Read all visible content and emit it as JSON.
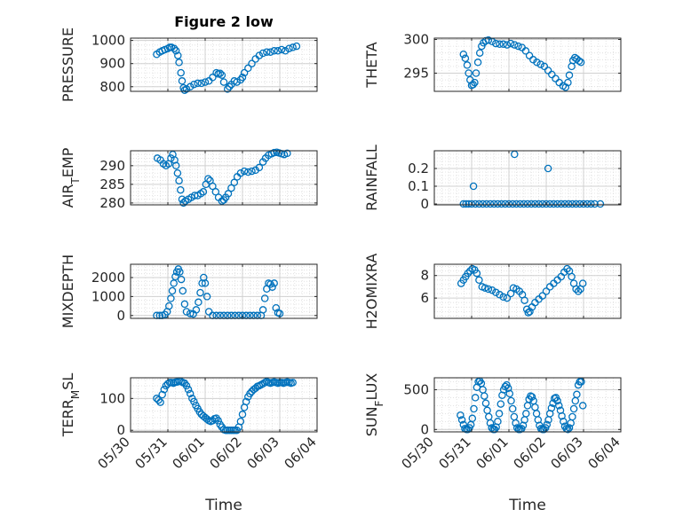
{
  "figure": {
    "title": "Figure 2 low",
    "xlabel": "Time",
    "marker_color": "#0072bd",
    "grid": true,
    "minor_grid": true,
    "x_tick_labels": [
      "05/30",
      "05/31",
      "06/01",
      "06/02",
      "06/03",
      "06/04"
    ]
  },
  "chart_data": [
    {
      "type": "scatter",
      "ylabel": "PRESSURE",
      "xlim": [
        0,
        5
      ],
      "ylim": [
        780,
        1010
      ],
      "yticks": [
        800,
        900,
        1000
      ],
      "xticks": [
        0,
        1,
        2,
        3,
        4,
        5
      ],
      "series": [
        {
          "x": [
            0.7,
            0.78,
            0.85,
            0.92,
            1.0,
            1.05,
            1.1,
            1.17,
            1.22,
            1.27,
            1.3,
            1.35,
            1.38,
            1.42,
            1.45,
            1.5,
            1.6,
            1.7,
            1.8,
            1.9,
            2.0,
            2.1,
            2.2,
            2.3,
            2.35,
            2.4,
            2.45,
            2.5,
            2.6,
            2.65,
            2.7,
            2.78,
            2.85,
            2.95,
            3.0,
            3.05,
            3.15,
            3.25,
            3.35,
            3.45,
            3.55,
            3.65,
            3.75,
            3.85,
            3.95,
            4.05,
            4.15,
            4.25,
            4.35,
            4.45
          ],
          "y": [
            940,
            950,
            955,
            960,
            965,
            970,
            970,
            965,
            955,
            935,
            905,
            860,
            825,
            795,
            785,
            790,
            800,
            810,
            815,
            815,
            820,
            825,
            840,
            860,
            855,
            858,
            850,
            820,
            790,
            800,
            810,
            825,
            820,
            830,
            840,
            860,
            880,
            900,
            920,
            935,
            945,
            950,
            950,
            955,
            955,
            960,
            955,
            965,
            970,
            975
          ]
        }
      ]
    },
    {
      "type": "scatter",
      "ylabel": "THETA",
      "xlim": [
        0,
        5
      ],
      "ylim": [
        292.3,
        300.2
      ],
      "yticks": [
        295,
        300
      ],
      "xticks": [
        0,
        1,
        2,
        3,
        4,
        5
      ],
      "series": [
        {
          "x": [
            0.78,
            0.83,
            0.88,
            0.92,
            0.96,
            1.0,
            1.04,
            1.08,
            1.12,
            1.17,
            1.22,
            1.27,
            1.32,
            1.38,
            1.45,
            1.55,
            1.65,
            1.75,
            1.85,
            1.95,
            2.05,
            2.15,
            2.25,
            2.35,
            2.45,
            2.55,
            2.65,
            2.75,
            2.85,
            2.95,
            3.05,
            3.15,
            3.25,
            3.35,
            3.45,
            3.52,
            3.58,
            3.62,
            3.68,
            3.72,
            3.77,
            3.82,
            3.88,
            3.93
          ],
          "y": [
            297.8,
            297.2,
            296.2,
            295.0,
            294.0,
            293.2,
            293.3,
            293.6,
            295.0,
            296.6,
            298.0,
            299.0,
            299.5,
            299.8,
            299.9,
            299.7,
            299.4,
            299.3,
            299.3,
            299.2,
            299.4,
            299.2,
            299.0,
            298.8,
            298.3,
            297.6,
            297.0,
            296.6,
            296.3,
            296.0,
            295.4,
            294.8,
            294.2,
            293.6,
            293.1,
            292.9,
            293.6,
            294.7,
            296.0,
            296.9,
            297.3,
            297.1,
            296.8,
            296.6
          ]
        }
      ]
    },
    {
      "type": "scatter",
      "ylabel": "AIR_TEMP",
      "xlim": [
        0,
        5
      ],
      "ylim": [
        279.5,
        294
      ],
      "yticks": [
        280,
        285,
        290
      ],
      "xticks": [
        0,
        1,
        2,
        3,
        4,
        5
      ],
      "series": [
        {
          "x": [
            0.72,
            0.8,
            0.88,
            0.95,
            1.02,
            1.08,
            1.13,
            1.18,
            1.22,
            1.26,
            1.3,
            1.34,
            1.38,
            1.42,
            1.47,
            1.55,
            1.63,
            1.72,
            1.8,
            1.88,
            1.95,
            2.02,
            2.08,
            2.13,
            2.2,
            2.28,
            2.36,
            2.45,
            2.5,
            2.55,
            2.62,
            2.7,
            2.78,
            2.86,
            2.95,
            3.05,
            3.15,
            3.25,
            3.35,
            3.45,
            3.55,
            3.62,
            3.7,
            3.78,
            3.85,
            3.92,
            3.98,
            4.05,
            4.12,
            4.2
          ],
          "y": [
            292.0,
            291.5,
            290.5,
            290.0,
            290.5,
            292.0,
            293.0,
            291.5,
            290.0,
            288.0,
            286.0,
            283.5,
            281.0,
            280.0,
            280.5,
            281.0,
            281.5,
            282.0,
            282.0,
            282.5,
            283.0,
            285.0,
            286.5,
            286.0,
            284.5,
            283.0,
            281.5,
            280.5,
            280.8,
            281.5,
            282.5,
            284.0,
            285.5,
            287.0,
            288.0,
            288.5,
            288.3,
            288.5,
            288.8,
            289.5,
            291.0,
            292.0,
            292.8,
            293.2,
            293.5,
            293.6,
            293.4,
            293.2,
            293.0,
            293.3
          ]
        }
      ]
    },
    {
      "type": "scatter",
      "ylabel": "RAINFALL",
      "xlim": [
        0,
        5
      ],
      "ylim": [
        -0.005,
        0.3
      ],
      "yticks": [
        0,
        0.1,
        0.2
      ],
      "xticks": [
        0,
        1,
        2,
        3,
        4,
        5
      ],
      "series": [
        {
          "x": [
            0.78,
            0.85,
            0.92,
            1.0,
            1.1,
            1.2,
            1.3,
            1.4,
            1.5,
            1.6,
            1.7,
            1.8,
            1.9,
            2.0,
            2.1,
            2.2,
            2.3,
            2.4,
            2.5,
            2.6,
            2.7,
            2.8,
            2.9,
            3.0,
            3.1,
            3.2,
            3.3,
            3.4,
            3.5,
            3.6,
            3.7,
            3.8,
            3.9,
            4.0,
            4.1,
            4.2,
            4.3,
            4.45,
            1.05,
            2.15,
            3.05
          ],
          "y": [
            0,
            0,
            0,
            0,
            0,
            0,
            0,
            0,
            0,
            0,
            0,
            0,
            0,
            0,
            0,
            0,
            0,
            0,
            0,
            0,
            0,
            0,
            0,
            0,
            0,
            0,
            0,
            0,
            0,
            0,
            0,
            0,
            0,
            0,
            0,
            0,
            0,
            0,
            0.1,
            0.28,
            0.2
          ]
        }
      ]
    },
    {
      "type": "scatter",
      "ylabel": "MIXDEPTH",
      "xlim": [
        0,
        5
      ],
      "ylim": [
        -150,
        2700
      ],
      "yticks": [
        0,
        1000,
        2000
      ],
      "xticks": [
        0,
        1,
        2,
        3,
        4,
        5
      ],
      "series": [
        {
          "x": [
            0.7,
            0.78,
            0.85,
            0.92,
            0.98,
            1.03,
            1.08,
            1.12,
            1.16,
            1.2,
            1.24,
            1.28,
            1.32,
            1.36,
            1.4,
            1.45,
            1.5,
            1.6,
            1.68,
            1.76,
            1.82,
            1.87,
            1.92,
            1.96,
            2.0,
            2.05,
            2.1,
            2.2,
            2.3,
            2.4,
            2.5,
            2.6,
            2.7,
            2.8,
            2.9,
            3.0,
            3.1,
            3.2,
            3.3,
            3.4,
            3.5,
            3.55,
            3.6,
            3.65,
            3.7,
            3.75,
            3.8,
            3.85,
            3.9,
            3.95,
            4.0
          ],
          "y": [
            0,
            0,
            0,
            50,
            200,
            500,
            900,
            1300,
            1700,
            2050,
            2300,
            2450,
            2300,
            1900,
            1300,
            600,
            200,
            100,
            80,
            300,
            700,
            1200,
            1700,
            2000,
            1700,
            1000,
            200,
            0,
            0,
            0,
            0,
            0,
            0,
            0,
            0,
            0,
            0,
            0,
            0,
            0,
            0,
            300,
            900,
            1400,
            1700,
            1650,
            1500,
            1700,
            400,
            150,
            100
          ]
        }
      ]
    },
    {
      "type": "scatter",
      "ylabel": "H2OMIXRA",
      "xlim": [
        0,
        5
      ],
      "ylim": [
        4.2,
        9.0
      ],
      "yticks": [
        6,
        8
      ],
      "xticks": [
        0,
        1,
        2,
        3,
        4,
        5
      ],
      "series": [
        {
          "x": [
            0.72,
            0.78,
            0.84,
            0.9,
            0.96,
            1.02,
            1.08,
            1.14,
            1.2,
            1.28,
            1.36,
            1.45,
            1.55,
            1.65,
            1.75,
            1.85,
            1.95,
            2.05,
            2.12,
            2.2,
            2.28,
            2.36,
            2.42,
            2.48,
            2.52,
            2.56,
            2.62,
            2.7,
            2.8,
            2.9,
            3.0,
            3.1,
            3.2,
            3.3,
            3.4,
            3.48,
            3.56,
            3.62,
            3.68,
            3.74,
            3.8,
            3.86,
            3.92,
            3.98
          ],
          "y": [
            7.3,
            7.6,
            7.9,
            8.2,
            8.4,
            8.6,
            8.5,
            8.2,
            7.6,
            7.0,
            6.9,
            6.8,
            6.7,
            6.5,
            6.3,
            6.1,
            6.0,
            6.4,
            6.9,
            6.8,
            6.6,
            6.3,
            5.8,
            5.0,
            4.7,
            4.8,
            5.2,
            5.6,
            5.9,
            6.2,
            6.6,
            7.0,
            7.3,
            7.6,
            7.9,
            8.3,
            8.6,
            8.4,
            7.9,
            7.3,
            6.8,
            6.6,
            6.8,
            7.3
          ]
        }
      ]
    },
    {
      "type": "scatter",
      "ylabel": "TERR_MSL",
      "xlim": [
        0,
        5
      ],
      "ylim": [
        -5,
        165
      ],
      "yticks": [
        0,
        100
      ],
      "xticks": [
        0,
        1,
        2,
        3,
        4,
        5
      ],
      "series": [
        {
          "x": [
            0.7,
            0.75,
            0.8,
            0.85,
            0.9,
            0.95,
            1.0,
            1.05,
            1.1,
            1.15,
            1.2,
            1.25,
            1.3,
            1.35,
            1.4,
            1.45,
            1.5,
            1.55,
            1.6,
            1.65,
            1.7,
            1.75,
            1.8,
            1.85,
            1.9,
            1.95,
            2.0,
            2.05,
            2.1,
            2.15,
            2.2,
            2.25,
            2.3,
            2.35,
            2.4,
            2.45,
            2.5,
            2.55,
            2.6,
            2.65,
            2.7,
            2.75,
            2.8,
            2.85,
            2.9,
            2.95,
            3.0,
            3.05,
            3.1,
            3.15,
            3.2,
            3.25,
            3.3,
            3.35,
            3.4,
            3.45,
            3.5,
            3.55,
            3.6,
            3.65,
            3.7,
            3.75,
            3.8,
            3.85,
            3.9,
            3.95,
            4.0,
            4.05,
            4.1,
            4.15,
            4.2,
            4.25,
            4.3,
            4.35
          ],
          "y": [
            100,
            95,
            88,
            112,
            128,
            140,
            146,
            150,
            150,
            148,
            151,
            152,
            155,
            153,
            150,
            148,
            140,
            128,
            115,
            100,
            90,
            78,
            68,
            58,
            50,
            45,
            40,
            35,
            30,
            28,
            30,
            36,
            38,
            30,
            18,
            10,
            2,
            0,
            0,
            0,
            0,
            0,
            0,
            0,
            10,
            28,
            50,
            72,
            90,
            105,
            115,
            122,
            128,
            132,
            138,
            140,
            143,
            146,
            150,
            153,
            150,
            148,
            150,
            152,
            150,
            148,
            150,
            150,
            148,
            150,
            152,
            150,
            148,
            150
          ]
        }
      ]
    },
    {
      "type": "scatter",
      "ylabel": "SUN_FLUX",
      "xlim": [
        0,
        5
      ],
      "ylim": [
        -30,
        650
      ],
      "yticks": [
        0,
        500
      ],
      "xticks": [
        0,
        1,
        2,
        3,
        4,
        5
      ],
      "series": [
        {
          "x": [
            0.7,
            0.74,
            0.78,
            0.82,
            0.86,
            0.9,
            0.94,
            0.98,
            1.02,
            1.06,
            1.1,
            1.14,
            1.18,
            1.22,
            1.26,
            1.3,
            1.34,
            1.38,
            1.42,
            1.46,
            1.5,
            1.54,
            1.58,
            1.62,
            1.66,
            1.7,
            1.74,
            1.78,
            1.82,
            1.86,
            1.9,
            1.94,
            1.98,
            2.02,
            2.06,
            2.1,
            2.14,
            2.18,
            2.22,
            2.26,
            2.3,
            2.34,
            2.38,
            2.42,
            2.46,
            2.5,
            2.54,
            2.58,
            2.62,
            2.66,
            2.7,
            2.74,
            2.78,
            2.82,
            2.86,
            2.9,
            2.94,
            2.98,
            3.02,
            3.06,
            3.1,
            3.14,
            3.18,
            3.22,
            3.26,
            3.3,
            3.34,
            3.38,
            3.42,
            3.46,
            3.5,
            3.54,
            3.58,
            3.62,
            3.66,
            3.7,
            3.74,
            3.78,
            3.82,
            3.86,
            3.9,
            3.94,
            3.98
          ],
          "y": [
            180,
            120,
            60,
            10,
            0,
            0,
            20,
            60,
            140,
            260,
            400,
            530,
            600,
            610,
            580,
            500,
            420,
            330,
            240,
            160,
            80,
            20,
            0,
            0,
            30,
            100,
            200,
            320,
            430,
            500,
            540,
            560,
            520,
            450,
            360,
            260,
            160,
            80,
            20,
            0,
            0,
            10,
            50,
            120,
            200,
            300,
            380,
            420,
            410,
            360,
            280,
            200,
            120,
            50,
            10,
            0,
            0,
            20,
            60,
            120,
            200,
            270,
            330,
            390,
            400,
            360,
            300,
            240,
            170,
            100,
            40,
            10,
            0,
            20,
            80,
            160,
            260,
            360,
            440,
            560,
            600,
            600,
            300
          ]
        }
      ]
    }
  ]
}
